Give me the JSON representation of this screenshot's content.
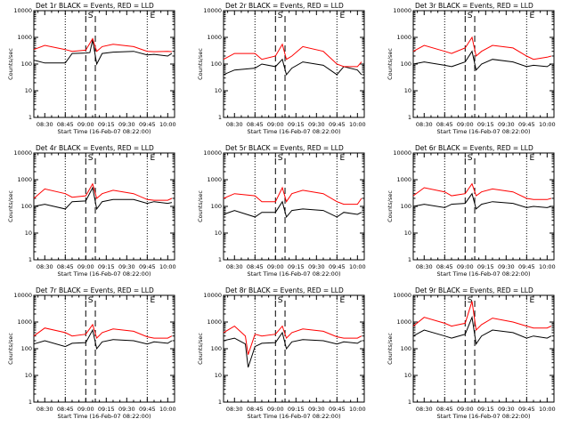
{
  "figure": {
    "layout": {
      "rows": 3,
      "cols": 3
    },
    "colors": {
      "events": "#000000",
      "lld": "#ff0000",
      "background": "#ffffff",
      "axes": "#000000"
    }
  },
  "chart_data": [
    {
      "type": "line",
      "title": "Det 1r BLACK = Events, RED = LLD",
      "xlabel": "Start Time (16-Feb-07 08:22:00)",
      "ylabel": "Counts/sec",
      "yscale": "log",
      "ylim": [
        1,
        10000
      ],
      "y_ticks": [
        "1",
        "10",
        "100",
        "1000",
        "10000"
      ],
      "x_ticks": [
        "08:30",
        "08:45",
        "09:00",
        "09:15",
        "09:30",
        "09:45",
        "10:00"
      ],
      "markers": [
        "S",
        "E"
      ],
      "series": [
        {
          "name": "Events",
          "color": "#000000",
          "x": [
            "08:22",
            "08:30",
            "08:45",
            "08:50",
            "09:00",
            "09:03",
            "09:05",
            "09:08",
            "09:12",
            "09:20",
            "09:35",
            "09:45",
            "09:50",
            "10:00",
            "10:03"
          ],
          "values": [
            140,
            110,
            110,
            250,
            260,
            270,
            800,
            100,
            250,
            280,
            300,
            220,
            230,
            200,
            250
          ]
        },
        {
          "name": "LLD",
          "color": "#ff0000",
          "x": [
            "08:22",
            "08:30",
            "08:45",
            "08:50",
            "09:00",
            "09:05",
            "09:08",
            "09:12",
            "09:20",
            "09:35",
            "09:45",
            "09:50",
            "10:00",
            "10:03"
          ],
          "values": [
            350,
            500,
            350,
            300,
            330,
            900,
            300,
            450,
            550,
            450,
            300,
            290,
            300,
            290
          ]
        }
      ]
    },
    {
      "type": "line",
      "title": "Det 2r BLACK = Events, RED = LLD",
      "xlabel": "Start Time (16-Feb-07 08:22:00)",
      "ylabel": "Counts/sec",
      "yscale": "log",
      "ylim": [
        1,
        10000
      ],
      "y_ticks": [
        "1",
        "10",
        "100",
        "1000",
        "10000"
      ],
      "x_ticks": [
        "08:30",
        "08:45",
        "09:00",
        "09:15",
        "09:30",
        "09:45",
        "10:00"
      ],
      "markers": [
        "S",
        "E"
      ],
      "series": [
        {
          "name": "Events",
          "color": "#000000",
          "x": [
            "08:22",
            "08:30",
            "08:45",
            "08:50",
            "09:00",
            "09:05",
            "09:08",
            "09:12",
            "09:20",
            "09:35",
            "09:45",
            "09:50",
            "10:00",
            "10:03"
          ],
          "values": [
            40,
            60,
            70,
            100,
            80,
            150,
            40,
            70,
            120,
            90,
            40,
            80,
            60,
            40
          ]
        },
        {
          "name": "LLD",
          "color": "#ff0000",
          "x": [
            "08:22",
            "08:30",
            "08:45",
            "08:50",
            "09:00",
            "09:05",
            "09:08",
            "09:12",
            "09:20",
            "09:35",
            "09:45",
            "09:50",
            "10:00",
            "10:03"
          ],
          "values": [
            150,
            250,
            250,
            150,
            200,
            550,
            150,
            200,
            450,
            300,
            100,
            80,
            80,
            120
          ]
        }
      ]
    },
    {
      "type": "line",
      "title": "Det 3r BLACK = Events, RED = LLD",
      "xlabel": "Start Time (16-Feb-07 08:22:00)",
      "ylabel": "Counts/sec",
      "yscale": "log",
      "ylim": [
        1,
        10000
      ],
      "y_ticks": [
        "1",
        "10",
        "100",
        "1000",
        "10000"
      ],
      "x_ticks": [
        "08:30",
        "08:45",
        "09:00",
        "09:15",
        "09:30",
        "09:45",
        "10:00"
      ],
      "markers": [
        "S",
        "E"
      ],
      "series": [
        {
          "name": "Events",
          "color": "#000000",
          "x": [
            "08:22",
            "08:30",
            "08:45",
            "08:50",
            "09:00",
            "09:05",
            "09:08",
            "09:12",
            "09:20",
            "09:35",
            "09:45",
            "09:50",
            "10:00",
            "10:03"
          ],
          "values": [
            100,
            120,
            90,
            80,
            120,
            300,
            60,
            100,
            150,
            120,
            80,
            90,
            80,
            100
          ]
        },
        {
          "name": "LLD",
          "color": "#ff0000",
          "x": [
            "08:22",
            "08:30",
            "08:45",
            "08:50",
            "09:00",
            "09:05",
            "09:08",
            "09:12",
            "09:20",
            "09:35",
            "09:45",
            "09:50",
            "10:00",
            "10:03"
          ],
          "values": [
            300,
            500,
            300,
            250,
            400,
            1000,
            200,
            300,
            500,
            400,
            200,
            150,
            180,
            200
          ]
        }
      ]
    },
    {
      "type": "line",
      "title": "Det 4r BLACK = Events, RED = LLD",
      "xlabel": "Start Time (16-Feb-07 08:22:00)",
      "ylabel": "Counts/sec",
      "yscale": "log",
      "ylim": [
        1,
        10000
      ],
      "y_ticks": [
        "1",
        "10",
        "100",
        "1000",
        "10000"
      ],
      "x_ticks": [
        "08:30",
        "08:45",
        "09:00",
        "09:15",
        "09:30",
        "09:45",
        "10:00"
      ],
      "markers": [
        "S",
        "E"
      ],
      "series": [
        {
          "name": "Events",
          "color": "#000000",
          "x": [
            "08:22",
            "08:30",
            "08:45",
            "08:50",
            "09:00",
            "09:05",
            "09:08",
            "09:12",
            "09:20",
            "09:35",
            "09:45",
            "09:50",
            "10:00",
            "10:03"
          ],
          "values": [
            100,
            120,
            80,
            150,
            160,
            500,
            80,
            150,
            180,
            180,
            130,
            150,
            130,
            140
          ]
        },
        {
          "name": "LLD",
          "color": "#ff0000",
          "x": [
            "08:22",
            "08:30",
            "08:45",
            "08:50",
            "09:00",
            "09:05",
            "09:08",
            "09:12",
            "09:20",
            "09:35",
            "09:45",
            "09:50",
            "10:00",
            "10:03"
          ],
          "values": [
            200,
            450,
            300,
            220,
            250,
            700,
            200,
            300,
            400,
            300,
            180,
            170,
            170,
            200
          ]
        }
      ]
    },
    {
      "type": "line",
      "title": "Det 5r BLACK = Events, RED = LLD",
      "xlabel": "Start Time (16-Feb-07 08:22:00)",
      "ylabel": "Counts/sec",
      "yscale": "log",
      "ylim": [
        1,
        10000
      ],
      "y_ticks": [
        "1",
        "10",
        "100",
        "1000",
        "10000"
      ],
      "x_ticks": [
        "08:30",
        "08:45",
        "09:00",
        "09:15",
        "09:30",
        "09:45",
        "10:00"
      ],
      "markers": [
        "S",
        "E"
      ],
      "series": [
        {
          "name": "Events",
          "color": "#000000",
          "x": [
            "08:22",
            "08:30",
            "08:45",
            "08:50",
            "09:00",
            "09:05",
            "09:08",
            "09:12",
            "09:20",
            "09:35",
            "09:45",
            "09:50",
            "10:00",
            "10:03"
          ],
          "values": [
            50,
            70,
            40,
            60,
            60,
            150,
            40,
            70,
            80,
            70,
            40,
            60,
            50,
            60
          ]
        },
        {
          "name": "LLD",
          "color": "#ff0000",
          "x": [
            "08:22",
            "08:30",
            "08:45",
            "08:50",
            "09:00",
            "09:05",
            "09:08",
            "09:12",
            "09:20",
            "09:35",
            "09:45",
            "09:50",
            "10:00",
            "10:03"
          ],
          "values": [
            200,
            300,
            250,
            150,
            150,
            500,
            150,
            300,
            400,
            300,
            150,
            120,
            120,
            200
          ]
        }
      ]
    },
    {
      "type": "line",
      "title": "Det 6r BLACK = Events, RED = LLD",
      "xlabel": "Start Time (16-Feb-07 08:22:00)",
      "ylabel": "Counts/sec",
      "yscale": "log",
      "ylim": [
        1,
        10000
      ],
      "y_ticks": [
        "1",
        "10",
        "100",
        "1000",
        "10000"
      ],
      "x_ticks": [
        "08:30",
        "08:45",
        "09:00",
        "09:15",
        "09:30",
        "09:45",
        "10:00"
      ],
      "markers": [
        "S",
        "E"
      ],
      "series": [
        {
          "name": "Events",
          "color": "#000000",
          "x": [
            "08:22",
            "08:30",
            "08:45",
            "08:50",
            "09:00",
            "09:05",
            "09:08",
            "09:12",
            "09:20",
            "09:35",
            "09:45",
            "09:50",
            "10:00",
            "10:03"
          ],
          "values": [
            100,
            120,
            90,
            120,
            130,
            300,
            80,
            120,
            150,
            130,
            90,
            100,
            90,
            100
          ]
        },
        {
          "name": "LLD",
          "color": "#ff0000",
          "x": [
            "08:22",
            "08:30",
            "08:45",
            "08:50",
            "09:00",
            "09:05",
            "09:08",
            "09:12",
            "09:20",
            "09:35",
            "09:45",
            "09:50",
            "10:00",
            "10:03"
          ],
          "values": [
            250,
            500,
            350,
            250,
            300,
            700,
            250,
            350,
            450,
            350,
            200,
            180,
            180,
            200
          ]
        }
      ]
    },
    {
      "type": "line",
      "title": "Det 7r BLACK = Events, RED = LLD",
      "xlabel": "Start Time (16-Feb-07 08:22:00)",
      "ylabel": "Counts/sec",
      "yscale": "log",
      "ylim": [
        1,
        10000
      ],
      "y_ticks": [
        "1",
        "10",
        "100",
        "1000",
        "10000"
      ],
      "x_ticks": [
        "08:30",
        "08:45",
        "09:00",
        "09:15",
        "09:30",
        "09:45",
        "10:00"
      ],
      "markers": [
        "S",
        "E"
      ],
      "series": [
        {
          "name": "Events",
          "color": "#000000",
          "x": [
            "08:22",
            "08:30",
            "08:45",
            "08:50",
            "09:00",
            "09:05",
            "09:08",
            "09:12",
            "09:20",
            "09:35",
            "09:45",
            "09:50",
            "10:00",
            "10:03"
          ],
          "values": [
            150,
            200,
            120,
            160,
            170,
            500,
            100,
            180,
            220,
            200,
            150,
            180,
            160,
            200
          ]
        },
        {
          "name": "LLD",
          "color": "#ff0000",
          "x": [
            "08:22",
            "08:30",
            "08:45",
            "08:50",
            "09:00",
            "09:05",
            "09:08",
            "09:12",
            "09:20",
            "09:35",
            "09:45",
            "09:50",
            "10:00",
            "10:03"
          ],
          "values": [
            300,
            600,
            400,
            300,
            350,
            800,
            250,
            400,
            550,
            450,
            280,
            250,
            250,
            300
          ]
        }
      ]
    },
    {
      "type": "line",
      "title": "Det 8r BLACK = Events, RED = LLD",
      "xlabel": "Start Time (16-Feb-07 08:22:00)",
      "ylabel": "Counts/sec",
      "yscale": "log",
      "ylim": [
        1,
        10000
      ],
      "y_ticks": [
        "1",
        "10",
        "100",
        "1000",
        "10000"
      ],
      "x_ticks": [
        "08:30",
        "08:45",
        "09:00",
        "09:15",
        "09:30",
        "09:45",
        "10:00"
      ],
      "markers": [
        "S",
        "E"
      ],
      "series": [
        {
          "name": "Events",
          "color": "#000000",
          "x": [
            "08:22",
            "08:30",
            "08:38",
            "08:40",
            "08:45",
            "08:50",
            "09:00",
            "09:05",
            "09:08",
            "09:12",
            "09:20",
            "09:35",
            "09:45",
            "09:50",
            "10:00",
            "10:03"
          ],
          "values": [
            200,
            250,
            150,
            20,
            120,
            160,
            170,
            400,
            100,
            180,
            220,
            200,
            150,
            180,
            160,
            200
          ]
        },
        {
          "name": "LLD",
          "color": "#ff0000",
          "x": [
            "08:22",
            "08:30",
            "08:38",
            "08:40",
            "08:45",
            "08:50",
            "09:00",
            "09:05",
            "09:08",
            "09:12",
            "09:20",
            "09:35",
            "09:45",
            "09:50",
            "10:00",
            "10:03"
          ],
          "values": [
            400,
            700,
            300,
            60,
            350,
            300,
            350,
            700,
            250,
            400,
            550,
            450,
            280,
            250,
            250,
            300
          ]
        }
      ]
    },
    {
      "type": "line",
      "title": "Det 9r BLACK = Events, RED = LLD",
      "xlabel": "Start Time (16-Feb-07 08:22:00)",
      "ylabel": "Counts/sec",
      "yscale": "log",
      "ylim": [
        1,
        10000
      ],
      "y_ticks": [
        "1",
        "10",
        "100",
        "1000",
        "10000"
      ],
      "x_ticks": [
        "08:30",
        "08:45",
        "09:00",
        "09:15",
        "09:30",
        "09:45",
        "10:00"
      ],
      "markers": [
        "S",
        "E"
      ],
      "series": [
        {
          "name": "Events",
          "color": "#000000",
          "x": [
            "08:22",
            "08:30",
            "08:45",
            "08:50",
            "09:00",
            "09:05",
            "09:08",
            "09:12",
            "09:20",
            "09:35",
            "09:45",
            "09:50",
            "10:00",
            "10:03"
          ],
          "values": [
            300,
            500,
            300,
            250,
            350,
            1500,
            150,
            300,
            500,
            400,
            250,
            300,
            250,
            300
          ]
        },
        {
          "name": "LLD",
          "color": "#ff0000",
          "x": [
            "08:22",
            "08:30",
            "08:45",
            "08:50",
            "09:00",
            "09:05",
            "09:08",
            "09:12",
            "09:20",
            "09:35",
            "09:45",
            "09:50",
            "10:00",
            "10:03"
          ],
          "values": [
            700,
            1500,
            900,
            700,
            900,
            6000,
            500,
            800,
            1400,
            1000,
            700,
            600,
            600,
            700
          ]
        }
      ]
    }
  ]
}
